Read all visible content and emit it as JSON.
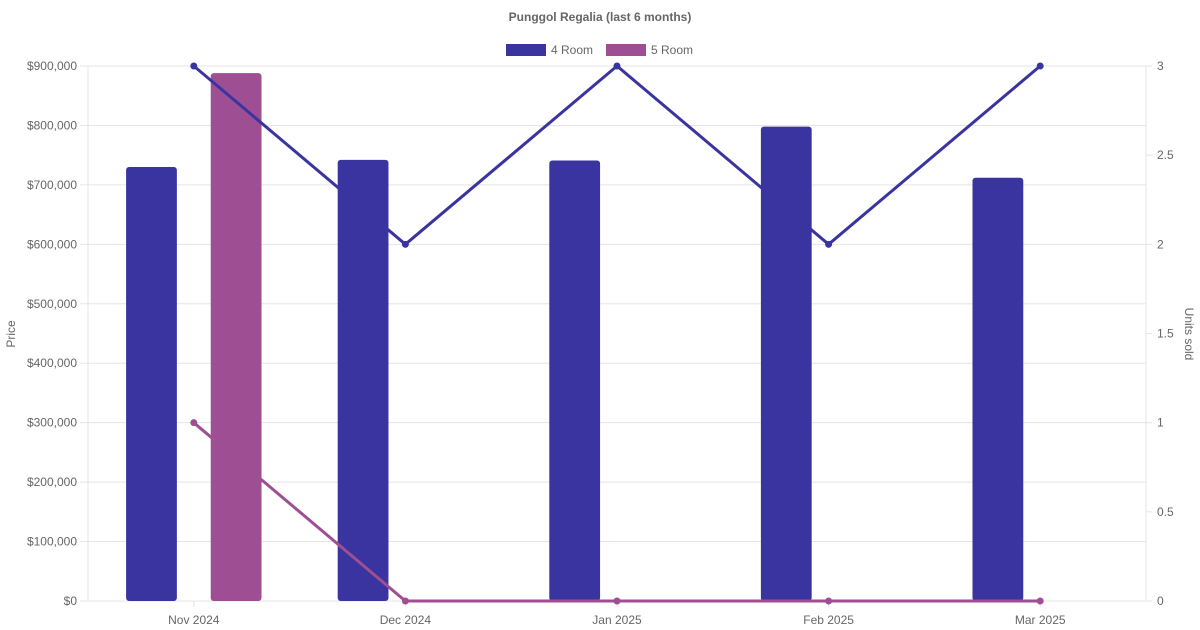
{
  "chart_data": {
    "type": "bar",
    "title": "Punggol Regalia (last 6 months)",
    "categories": [
      "Nov 2024",
      "Dec 2024",
      "Jan 2025",
      "Feb 2025",
      "Mar 2025"
    ],
    "series": [
      {
        "name": "4 Room",
        "kind": "bar",
        "axis": "y",
        "color": "#3a34a0",
        "values": [
          730000,
          742000,
          741000,
          798000,
          712000
        ]
      },
      {
        "name": "5 Room",
        "kind": "bar",
        "axis": "y",
        "color": "#9e4f93",
        "values": [
          888000,
          null,
          null,
          null,
          null
        ]
      },
      {
        "name": "4 Room",
        "kind": "line",
        "axis": "y2",
        "color": "#3a34a0",
        "values": [
          3,
          2,
          3,
          2,
          3
        ]
      },
      {
        "name": "5 Room",
        "kind": "line",
        "axis": "y2",
        "color": "#9e4f93",
        "values": [
          1,
          0,
          0,
          0,
          0
        ]
      }
    ],
    "legend": [
      "4 Room",
      "5 Room"
    ],
    "legend_position": "top",
    "ylabel": "Price",
    "y2label": "Units sold",
    "ylim": [
      0,
      900000
    ],
    "y2lim": [
      0,
      3
    ],
    "yticks": [
      "$0",
      "$100,000",
      "$200,000",
      "$300,000",
      "$400,000",
      "$500,000",
      "$600,000",
      "$700,000",
      "$800,000",
      "$900,000"
    ],
    "y2ticks": [
      "0",
      "0.5",
      "1",
      "1.5",
      "2",
      "2.5",
      "3"
    ],
    "grid": true
  }
}
